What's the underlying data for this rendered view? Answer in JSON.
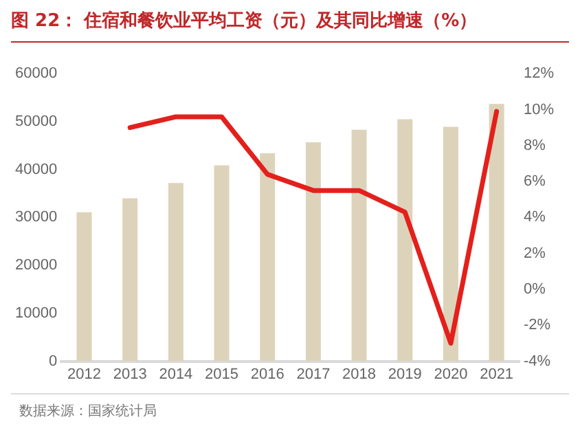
{
  "chart_data": {
    "type": "bar",
    "title": "图 22：  住宿和餐饮业平均工资（元）及其同比增速（%）",
    "categories": [
      "2012",
      "2013",
      "2014",
      "2015",
      "2016",
      "2017",
      "2018",
      "2019",
      "2020",
      "2021"
    ],
    "series": [
      {
        "color": "#ddd3bb",
        "values": [
          31100,
          34000,
          37200,
          40900,
          43400,
          45700,
          48300,
          50500,
          48900,
          53700
        ]
      },
      {
        "type": "line",
        "axis": "y2",
        "color": "#e3201b",
        "values": [
          null,
          9.0,
          9.6,
          9.6,
          6.4,
          5.5,
          5.5,
          4.3,
          -3.0,
          9.9
        ]
      }
    ],
    "ylim": [
      0,
      60000
    ],
    "yticks": [
      0,
      10000,
      20000,
      30000,
      40000,
      50000,
      60000
    ],
    "y2lim": [
      -4,
      12
    ],
    "y2ticks": [
      {
        "value": -4,
        "label": "-4%"
      },
      {
        "value": -2,
        "label": "-2%"
      },
      {
        "value": 0,
        "label": "0%"
      },
      {
        "value": 2,
        "label": "2%"
      },
      {
        "value": 4,
        "label": "4%"
      },
      {
        "value": 6,
        "label": "6%"
      },
      {
        "value": 8,
        "label": "8%"
      },
      {
        "value": 10,
        "label": "10%"
      },
      {
        "value": 12,
        "label": "12%"
      }
    ],
    "grid": false,
    "legend": false,
    "marker": "none",
    "annotations": [
      "数据来源：国家统计局"
    ]
  }
}
